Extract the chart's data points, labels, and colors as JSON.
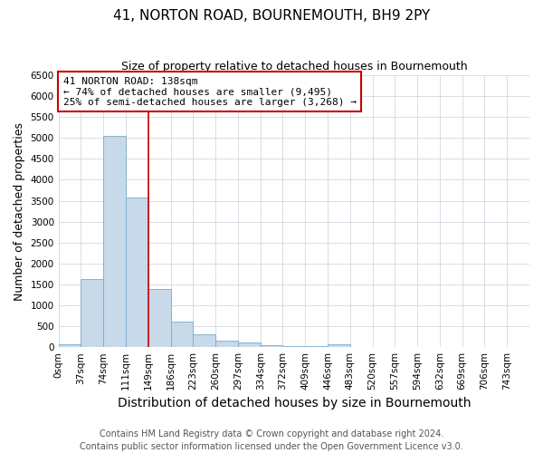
{
  "title": "41, NORTON ROAD, BOURNEMOUTH, BH9 2PY",
  "subtitle": "Size of property relative to detached houses in Bournemouth",
  "xlabel": "Distribution of detached houses by size in Bournemouth",
  "ylabel": "Number of detached properties",
  "footer_line1": "Contains HM Land Registry data © Crown copyright and database right 2024.",
  "footer_line2": "Contains public sector information licensed under the Open Government Licence v3.0.",
  "bin_labels": [
    "0sqm",
    "37sqm",
    "74sqm",
    "111sqm",
    "149sqm",
    "186sqm",
    "223sqm",
    "260sqm",
    "297sqm",
    "334sqm",
    "372sqm",
    "409sqm",
    "446sqm",
    "483sqm",
    "520sqm",
    "557sqm",
    "594sqm",
    "632sqm",
    "669sqm",
    "706sqm",
    "743sqm"
  ],
  "bar_values": [
    75,
    1620,
    5060,
    3570,
    1390,
    610,
    305,
    155,
    110,
    55,
    30,
    25,
    60,
    0,
    0,
    0,
    0,
    0,
    0,
    0,
    0
  ],
  "bar_color": "#c8d9ea",
  "bar_edge_color": "#7aaac8",
  "vline_color": "#cc0000",
  "vline_x": 4,
  "annotation_title": "41 NORTON ROAD: 138sqm",
  "annotation_line1": "← 74% of detached houses are smaller (9,495)",
  "annotation_line2": "25% of semi-detached houses are larger (3,268) →",
  "annotation_box_color": "#ffffff",
  "annotation_border_color": "#cc0000",
  "ylim": [
    0,
    6500
  ],
  "yticks": [
    0,
    500,
    1000,
    1500,
    2000,
    2500,
    3000,
    3500,
    4000,
    4500,
    5000,
    5500,
    6000,
    6500
  ],
  "grid_color": "#d0d8e0",
  "title_fontsize": 11,
  "subtitle_fontsize": 9,
  "axis_label_fontsize": 9,
  "tick_fontsize": 7.5,
  "annotation_fontsize": 8,
  "footer_fontsize": 7
}
